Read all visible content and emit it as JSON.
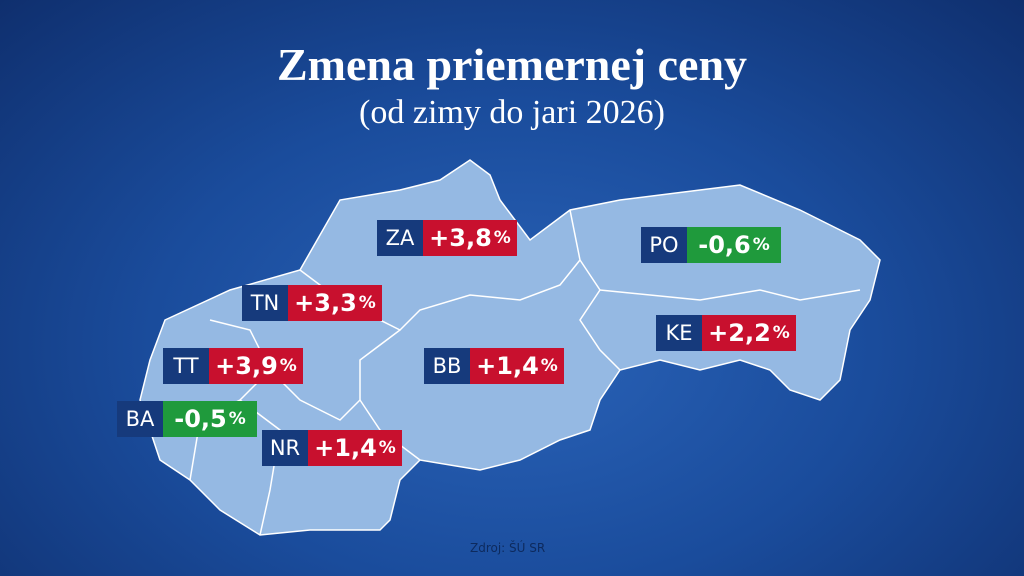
{
  "title": "Zmena priemernej ceny",
  "subtitle": "(od zimy do jari 2026)",
  "source": "Zdroj: ŠÚ SR",
  "regions": [
    {
      "code": "ZA",
      "value": "+3,8",
      "unit": "%",
      "color": "#c8102e"
    },
    {
      "code": "TN",
      "value": "+3,3",
      "unit": "%",
      "color": "#c8102e"
    },
    {
      "code": "TT",
      "value": "+3,9",
      "unit": "%",
      "color": "#c8102e"
    },
    {
      "code": "BA",
      "value": "-0,5",
      "unit": "%",
      "color": "#1f9a3c"
    },
    {
      "code": "NR",
      "value": "+1,4",
      "unit": "%",
      "color": "#c8102e"
    },
    {
      "code": "BB",
      "value": "+1,4",
      "unit": "%",
      "color": "#c8102e"
    },
    {
      "code": "PO",
      "value": "-0,6",
      "unit": "%",
      "color": "#1f9a3c"
    },
    {
      "code": "KE",
      "value": "+2,2",
      "unit": "%",
      "color": "#c8102e"
    }
  ]
}
